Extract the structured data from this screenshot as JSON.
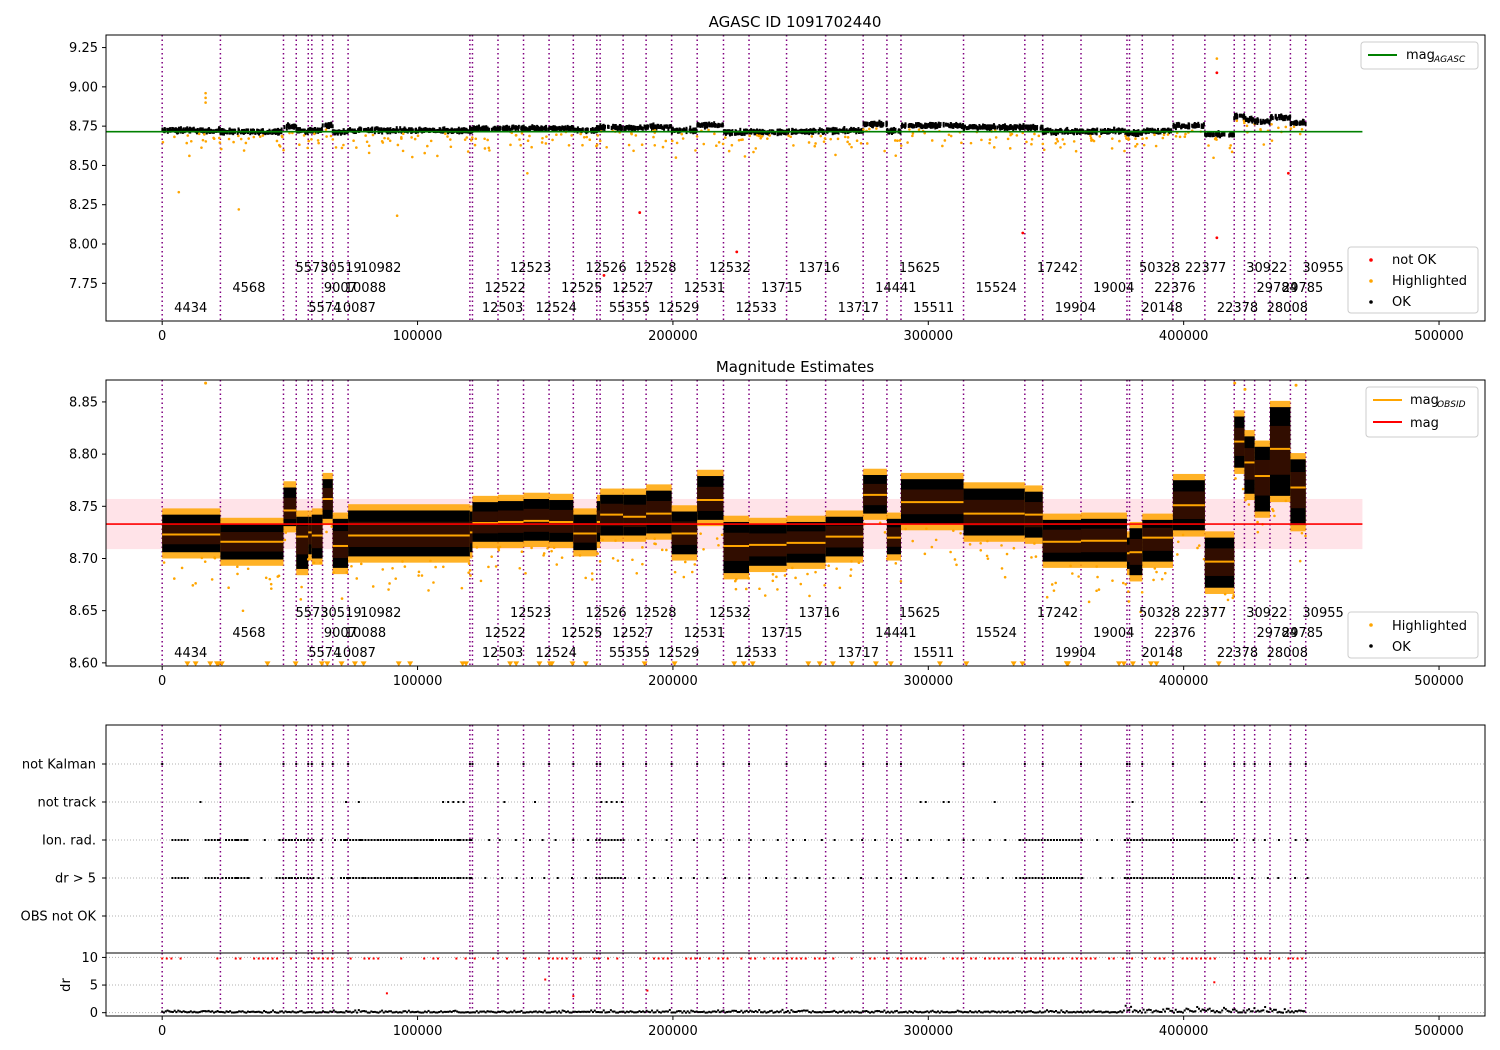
{
  "figure": {
    "title_top": "AGASC ID 1091702440",
    "title_mid": "Magnitude Estimates"
  },
  "colors": {
    "ok": "#000000",
    "highlighted": "#ffa500",
    "not_ok": "#ff0000",
    "mag_agasc": "#008000",
    "mag_obsid": "#ffa500",
    "mag": "#ff0000",
    "obs_line": "#800080",
    "band": "#ffc0cb"
  },
  "chart_data": [
    {
      "id": "top",
      "type": "scatter",
      "title": "AGASC ID 1091702440",
      "xlim": [
        -22000,
        518000
      ],
      "ylim": [
        7.51,
        9.33
      ],
      "xticks": [
        0,
        100000,
        200000,
        300000,
        400000,
        500000
      ],
      "xtick_labels": [
        "0",
        "100000",
        "200000",
        "300000",
        "400000",
        "500000"
      ],
      "yticks": [
        7.75,
        8.0,
        8.25,
        8.5,
        8.75,
        9.0,
        9.25
      ],
      "ytick_labels": [
        "7.75",
        "8.00",
        "8.25",
        "8.50",
        "8.75",
        "9.00",
        "9.25"
      ],
      "mag_agasc": 8.715,
      "mag_agasc_xrange": [
        -22000,
        470000
      ],
      "legend_line": [
        {
          "label": "mag",
          "sub": "AGASC",
          "color": "#008000"
        }
      ],
      "legend_points": [
        {
          "label": "not OK",
          "color": "#ff0000"
        },
        {
          "label": "Highlighted",
          "color": "#ffa500"
        },
        {
          "label": "OK",
          "color": "#000000"
        }
      ],
      "grid": false
    },
    {
      "id": "mid",
      "type": "scatter",
      "title": "Magnitude Estimates",
      "xlim": [
        -22000,
        518000
      ],
      "ylim": [
        8.597,
        8.871
      ],
      "xticks": [
        0,
        100000,
        200000,
        300000,
        400000,
        500000
      ],
      "xtick_labels": [
        "0",
        "100000",
        "200000",
        "300000",
        "400000",
        "500000"
      ],
      "yticks": [
        8.6,
        8.65,
        8.7,
        8.75,
        8.8,
        8.85
      ],
      "ytick_labels": [
        "8.60",
        "8.65",
        "8.70",
        "8.75",
        "8.80",
        "8.85"
      ],
      "mag": 8.733,
      "mag_band": [
        8.709,
        8.757
      ],
      "mag_xrange": [
        -22000,
        470000
      ],
      "legend_line": [
        {
          "label": "mag",
          "sub": "OBSID",
          "color": "#ffa500"
        },
        {
          "label": "mag",
          "sub": "",
          "color": "#ff0000"
        }
      ],
      "legend_points": [
        {
          "label": "Highlighted",
          "color": "#ffa500"
        },
        {
          "label": "OK",
          "color": "#000000"
        }
      ],
      "grid": false
    },
    {
      "id": "flags",
      "type": "scatter",
      "xlim": [
        -22000,
        518000
      ],
      "categories": [
        "not Kalman",
        "not track",
        "Ion. rad.",
        "dr > 5",
        "OBS not OK"
      ],
      "grid": true
    },
    {
      "id": "dr",
      "type": "scatter",
      "xlim": [
        -22000,
        518000
      ],
      "ylim": [
        -0.6,
        10.8
      ],
      "yticks": [
        0,
        5,
        10
      ],
      "ytick_labels": [
        "0",
        "5",
        "10"
      ],
      "xticks": [
        0,
        100000,
        200000,
        300000,
        400000,
        500000
      ],
      "xtick_labels": [
        "0",
        "100000",
        "200000",
        "300000",
        "400000",
        "500000"
      ],
      "ylabel": "dr",
      "grid": true
    }
  ],
  "observations": [
    {
      "obsid": "4434",
      "x0": 0,
      "x1": 22800,
      "mag": 8.723,
      "lo": 8.706,
      "hi": 8.742
    },
    {
      "obsid": "4568",
      "x0": 22800,
      "x1": 47500,
      "mag": 8.716,
      "lo": 8.699,
      "hi": 8.733
    },
    {
      "obsid": "5573",
      "x0": 47500,
      "x1": 52500,
      "mag": 8.746,
      "lo": 8.731,
      "hi": 8.768
    },
    {
      "obsid": "5574",
      "x0": 52500,
      "x1": 57200,
      "mag": 8.721,
      "lo": 8.69,
      "hi": 8.74
    },
    {
      "obsid": "30519",
      "x0": 57200,
      "x1": 58600,
      "mag": 8.725,
      "lo": 8.704,
      "hi": 8.74
    },
    {
      "obsid": "9007",
      "x0": 58600,
      "x1": 62800,
      "mag": 8.722,
      "lo": 8.7,
      "hi": 8.742
    },
    {
      "obsid": "10087",
      "x0": 62800,
      "x1": 66800,
      "mag": 8.757,
      "lo": 8.738,
      "hi": 8.776
    },
    {
      "obsid": "10088",
      "x0": 66800,
      "x1": 72800,
      "mag": 8.712,
      "lo": 8.691,
      "hi": 8.738
    },
    {
      "obsid": "10982",
      "x0": 72800,
      "x1": 120500,
      "mag": 8.722,
      "lo": 8.702,
      "hi": 8.746
    },
    {
      "obsid": "12503",
      "x0": 120500,
      "x1": 121500,
      "mag": 8.725,
      "lo": 8.706,
      "hi": 8.745
    },
    {
      "obsid": "12522",
      "x0": 121500,
      "x1": 131500,
      "mag": 8.734,
      "lo": 8.716,
      "hi": 8.754
    },
    {
      "obsid": "12523",
      "x0": 131500,
      "x1": 141500,
      "mag": 8.735,
      "lo": 8.716,
      "hi": 8.755
    },
    {
      "obsid": "12524",
      "x0": 141500,
      "x1": 151500,
      "mag": 8.736,
      "lo": 8.717,
      "hi": 8.757
    },
    {
      "obsid": "12525",
      "x0": 151500,
      "x1": 161000,
      "mag": 8.735,
      "lo": 8.716,
      "hi": 8.756
    },
    {
      "obsid": "12526",
      "x0": 161000,
      "x1": 170200,
      "mag": 8.724,
      "lo": 8.708,
      "hi": 8.742
    },
    {
      "obsid": "55355",
      "x0": 170200,
      "x1": 171500,
      "mag": 8.735,
      "lo": 8.716,
      "hi": 8.755
    },
    {
      "obsid": "12527",
      "x0": 171500,
      "x1": 180500,
      "mag": 8.742,
      "lo": 8.722,
      "hi": 8.761
    },
    {
      "obsid": "12528",
      "x0": 180500,
      "x1": 189500,
      "mag": 8.74,
      "lo": 8.722,
      "hi": 8.761
    },
    {
      "obsid": "12529",
      "x0": 189500,
      "x1": 199500,
      "mag": 8.743,
      "lo": 8.724,
      "hi": 8.765
    },
    {
      "obsid": "12531",
      "x0": 199500,
      "x1": 209500,
      "mag": 8.724,
      "lo": 8.704,
      "hi": 8.745
    },
    {
      "obsid": "12532",
      "x0": 209500,
      "x1": 219800,
      "mag": 8.756,
      "lo": 8.737,
      "hi": 8.779
    },
    {
      "obsid": "12533",
      "x0": 219800,
      "x1": 229800,
      "mag": 8.712,
      "lo": 8.686,
      "hi": 8.735
    },
    {
      "obsid": "13715",
      "x0": 229800,
      "x1": 244500,
      "mag": 8.713,
      "lo": 8.693,
      "hi": 8.733
    },
    {
      "obsid": "13716",
      "x0": 244500,
      "x1": 259800,
      "mag": 8.715,
      "lo": 8.696,
      "hi": 8.735
    },
    {
      "obsid": "13717",
      "x0": 259800,
      "x1": 274500,
      "mag": 8.721,
      "lo": 8.702,
      "hi": 8.74
    },
    {
      "obsid": "14441",
      "x0": 274500,
      "x1": 283800,
      "mag": 8.761,
      "lo": 8.743,
      "hi": 8.78
    },
    {
      "obsid": "15625",
      "x0": 283800,
      "x1": 289300,
      "mag": 8.72,
      "lo": 8.704,
      "hi": 8.738
    },
    {
      "obsid": "15511",
      "x0": 289300,
      "x1": 313800,
      "mag": 8.754,
      "lo": 8.733,
      "hi": 8.776
    },
    {
      "obsid": "15524",
      "x0": 313800,
      "x1": 337800,
      "mag": 8.743,
      "lo": 8.722,
      "hi": 8.767
    },
    {
      "obsid": "17242",
      "x0": 337800,
      "x1": 344800,
      "mag": 8.742,
      "lo": 8.72,
      "hi": 8.764
    },
    {
      "obsid": "19904",
      "x0": 344800,
      "x1": 359800,
      "mag": 8.716,
      "lo": 8.697,
      "hi": 8.737
    },
    {
      "obsid": "19004",
      "x0": 359800,
      "x1": 377800,
      "mag": 8.717,
      "lo": 8.697,
      "hi": 8.738
    },
    {
      "obsid": "50328",
      "x0": 377800,
      "x1": 378800,
      "mag": 8.705,
      "lo": 8.69,
      "hi": 8.72
    },
    {
      "obsid": "20148",
      "x0": 378800,
      "x1": 383800,
      "mag": 8.706,
      "lo": 8.684,
      "hi": 8.729
    },
    {
      "obsid": "22376",
      "x0": 383800,
      "x1": 395800,
      "mag": 8.72,
      "lo": 8.697,
      "hi": 8.737
    },
    {
      "obsid": "22377",
      "x0": 395800,
      "x1": 408300,
      "mag": 8.751,
      "lo": 8.727,
      "hi": 8.775
    },
    {
      "obsid": "22378",
      "x0": 408300,
      "x1": 419800,
      "mag": 8.697,
      "lo": 8.672,
      "hi": 8.72
    },
    {
      "obsid": "30922",
      "x0": 419800,
      "x1": 423800,
      "mag": 8.812,
      "lo": 8.787,
      "hi": 8.836
    },
    {
      "obsid": "29784",
      "x0": 423800,
      "x1": 427800,
      "mag": 8.792,
      "lo": 8.762,
      "hi": 8.817
    },
    {
      "obsid": "28008",
      "x0": 427800,
      "x1": 433800,
      "mag": 8.779,
      "lo": 8.745,
      "hi": 8.807
    },
    {
      "obsid": "29785",
      "x0": 433800,
      "x1": 441800,
      "mag": 8.805,
      "lo": 8.76,
      "hi": 8.845
    },
    {
      "obsid": "30955",
      "x0": 441800,
      "x1": 447800,
      "mag": 8.768,
      "lo": 8.732,
      "hi": 8.795
    }
  ],
  "obs_label_rows": {
    "top": [
      "5573",
      "30519",
      "10982",
      "12523",
      "12526",
      "12528",
      "12532",
      "13716",
      "15625",
      "17242",
      "50328",
      "22377",
      "30922",
      "30955"
    ],
    "mid": [
      "4568",
      "9007",
      "10088",
      "12522",
      "12525",
      "12527",
      "12531",
      "13715",
      "14441",
      "15524",
      "19004",
      "22376",
      "29784",
      "29785"
    ],
    "bot": [
      "4434",
      "5574",
      "10087",
      "12503",
      "12524",
      "55355",
      "12529",
      "12533",
      "13717",
      "15511",
      "19904",
      "20148",
      "22378",
      "28008"
    ]
  }
}
